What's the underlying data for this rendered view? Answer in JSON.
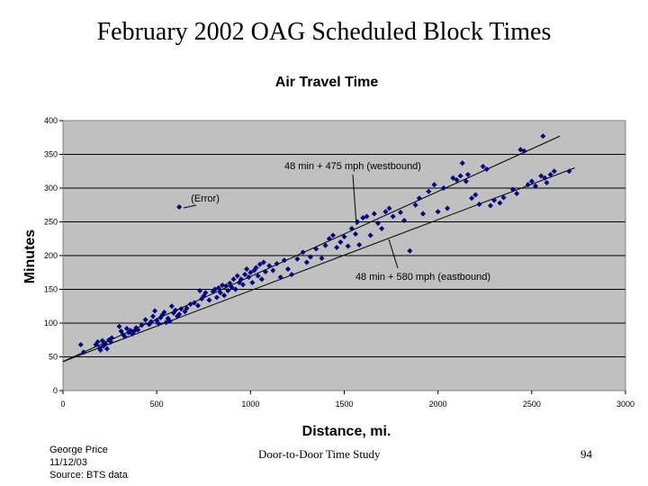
{
  "slide": {
    "title": "February 2002 OAG Scheduled Block Times",
    "footer": {
      "author": "George Price",
      "date": "11/12/03",
      "source": "Source: BTS data",
      "center": "Door-to-Door Time Study",
      "page_number": "94"
    }
  },
  "chart_data": {
    "type": "scatter",
    "title": "Air Travel Time",
    "xlabel": "Distance, mi.",
    "ylabel": "Minutes",
    "xlim": [
      0,
      3000
    ],
    "ylim": [
      0,
      400
    ],
    "x_ticks": [
      0,
      500,
      1000,
      1500,
      2000,
      2500,
      3000
    ],
    "y_ticks": [
      0,
      50,
      100,
      150,
      200,
      250,
      300,
      350,
      400
    ],
    "grid": "horizontal-major",
    "plot_background": "#c0c0c0",
    "marker_color": "#000080",
    "lines": [
      {
        "label": "48 min + 475 mph (westbound)",
        "x": [
          0,
          2650
        ],
        "y": [
          43,
          377
        ]
      },
      {
        "label": "48 min + 580 mph (eastbound)",
        "x": [
          0,
          2730
        ],
        "y": [
          43,
          330
        ]
      }
    ],
    "annotations": [
      {
        "text": "48 min + 475 mph (westbound)"
      },
      {
        "text": "(Error)"
      },
      {
        "text": "48 min + 580 mph (eastbound)"
      }
    ],
    "points": [
      [
        95,
        68
      ],
      [
        110,
        57
      ],
      [
        175,
        68
      ],
      [
        185,
        72
      ],
      [
        195,
        63
      ],
      [
        200,
        60
      ],
      [
        210,
        74
      ],
      [
        215,
        66
      ],
      [
        225,
        70
      ],
      [
        235,
        62
      ],
      [
        245,
        75
      ],
      [
        255,
        72
      ],
      [
        260,
        78
      ],
      [
        300,
        95
      ],
      [
        310,
        88
      ],
      [
        320,
        83
      ],
      [
        330,
        80
      ],
      [
        340,
        92
      ],
      [
        350,
        86
      ],
      [
        360,
        89
      ],
      [
        370,
        84
      ],
      [
        380,
        88
      ],
      [
        390,
        93
      ],
      [
        400,
        90
      ],
      [
        420,
        97
      ],
      [
        440,
        105
      ],
      [
        460,
        98
      ],
      [
        470,
        102
      ],
      [
        480,
        110
      ],
      [
        490,
        118
      ],
      [
        500,
        104
      ],
      [
        510,
        99
      ],
      [
        520,
        108
      ],
      [
        530,
        112
      ],
      [
        540,
        116
      ],
      [
        550,
        101
      ],
      [
        560,
        107
      ],
      [
        570,
        103
      ],
      [
        580,
        125
      ],
      [
        590,
        115
      ],
      [
        600,
        119
      ],
      [
        610,
        110
      ],
      [
        620,
        113
      ],
      [
        630,
        121
      ],
      [
        650,
        117
      ],
      [
        660,
        122
      ],
      [
        680,
        128
      ],
      [
        700,
        130
      ],
      [
        720,
        126
      ],
      [
        730,
        148
      ],
      [
        740,
        136
      ],
      [
        750,
        140
      ],
      [
        760,
        145
      ],
      [
        780,
        134
      ],
      [
        800,
        147
      ],
      [
        810,
        150
      ],
      [
        820,
        138
      ],
      [
        830,
        152
      ],
      [
        840,
        145
      ],
      [
        850,
        156
      ],
      [
        860,
        141
      ],
      [
        870,
        155
      ],
      [
        880,
        148
      ],
      [
        890,
        159
      ],
      [
        900,
        153
      ],
      [
        910,
        165
      ],
      [
        920,
        150
      ],
      [
        930,
        170
      ],
      [
        940,
        160
      ],
      [
        950,
        165
      ],
      [
        960,
        157
      ],
      [
        970,
        172
      ],
      [
        980,
        180
      ],
      [
        990,
        168
      ],
      [
        1000,
        175
      ],
      [
        1010,
        160
      ],
      [
        1020,
        178
      ],
      [
        1030,
        182
      ],
      [
        1040,
        170
      ],
      [
        1050,
        187
      ],
      [
        1060,
        165
      ],
      [
        1070,
        190
      ],
      [
        1080,
        176
      ],
      [
        1100,
        185
      ],
      [
        1120,
        178
      ],
      [
        1140,
        188
      ],
      [
        1160,
        168
      ],
      [
        1180,
        193
      ],
      [
        1200,
        180
      ],
      [
        1220,
        172
      ],
      [
        1250,
        195
      ],
      [
        1280,
        205
      ],
      [
        1300,
        190
      ],
      [
        1320,
        198
      ],
      [
        1350,
        210
      ],
      [
        1380,
        196
      ],
      [
        1400,
        215
      ],
      [
        1420,
        225
      ],
      [
        1440,
        230
      ],
      [
        1460,
        212
      ],
      [
        1480,
        220
      ],
      [
        1500,
        228
      ],
      [
        1520,
        214
      ],
      [
        1540,
        240
      ],
      [
        1560,
        232
      ],
      [
        1570,
        250
      ],
      [
        1580,
        216
      ],
      [
        1600,
        256
      ],
      [
        1620,
        258
      ],
      [
        1640,
        230
      ],
      [
        1660,
        262
      ],
      [
        1680,
        248
      ],
      [
        1700,
        240
      ],
      [
        1720,
        265
      ],
      [
        1740,
        270
      ],
      [
        1760,
        258
      ],
      [
        1800,
        264
      ],
      [
        1820,
        252
      ],
      [
        1850,
        207
      ],
      [
        1880,
        275
      ],
      [
        1900,
        285
      ],
      [
        1920,
        262
      ],
      [
        1950,
        295
      ],
      [
        1980,
        305
      ],
      [
        2000,
        265
      ],
      [
        2030,
        300
      ],
      [
        2050,
        270
      ],
      [
        2080,
        315
      ],
      [
        2100,
        312
      ],
      [
        2120,
        318
      ],
      [
        2130,
        337
      ],
      [
        2150,
        310
      ],
      [
        2160,
        320
      ],
      [
        2180,
        285
      ],
      [
        2200,
        290
      ],
      [
        2220,
        276
      ],
      [
        2240,
        332
      ],
      [
        2260,
        328
      ],
      [
        2280,
        274
      ],
      [
        2300,
        282
      ],
      [
        2330,
        278
      ],
      [
        2350,
        286
      ],
      [
        2400,
        298
      ],
      [
        2420,
        292
      ],
      [
        2440,
        357
      ],
      [
        2460,
        355
      ],
      [
        2480,
        305
      ],
      [
        2500,
        310
      ],
      [
        2520,
        303
      ],
      [
        2550,
        318
      ],
      [
        2570,
        315
      ],
      [
        2580,
        308
      ],
      [
        2600,
        320
      ],
      [
        2620,
        325
      ],
      [
        2700,
        325
      ],
      [
        2560,
        377
      ],
      [
        620,
        272
      ]
    ]
  }
}
